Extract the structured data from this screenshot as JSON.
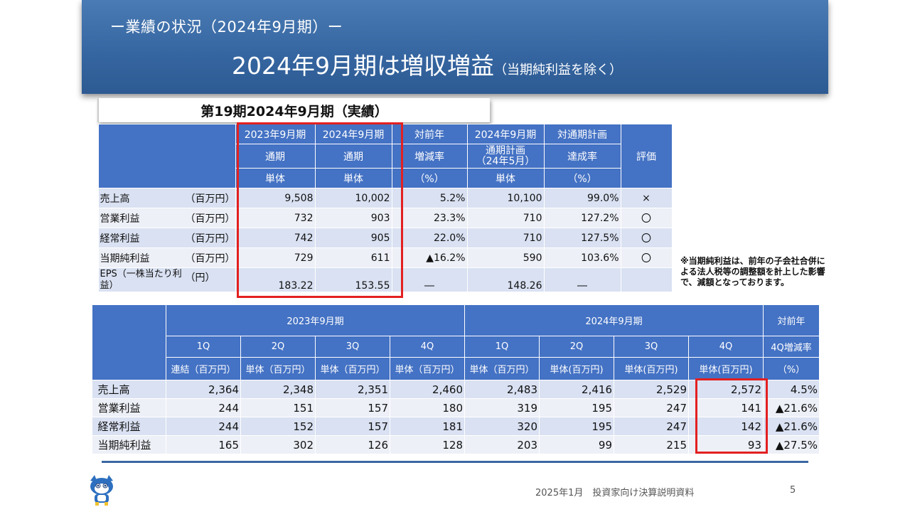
{
  "header": {
    "kicker": "ー業績の状況（2024年9月期）ー",
    "headline": "2024年9月期は増収増益",
    "headline_note": "（当期純利益を除く）"
  },
  "section_label": "第19期2024年9月期（実績）",
  "annual_table": {
    "header_row1": [
      "2023年9月期",
      "2024年9月期",
      "対前年",
      "2024年9月期",
      "対通期計画",
      "評価"
    ],
    "header_row2": [
      "通期",
      "通期",
      "増減率",
      "通期計画\n（24年5月）",
      "達成率"
    ],
    "header_row3": [
      "単体",
      "単体",
      "（%）",
      "単体",
      "（%）"
    ],
    "rows": [
      {
        "label": "売上高",
        "unit": "（百万円）",
        "values": [
          "9,508",
          "10,002",
          "5.2%",
          "10,100",
          "99.0%",
          "×"
        ]
      },
      {
        "label": "営業利益",
        "unit": "（百万円）",
        "values": [
          "732",
          "903",
          "23.3%",
          "710",
          "127.2%",
          "〇"
        ]
      },
      {
        "label": "経常利益",
        "unit": "（百万円）",
        "values": [
          "742",
          "905",
          "22.0%",
          "710",
          "127.5%",
          "〇"
        ]
      },
      {
        "label": "当期純利益",
        "unit": "（百万円）",
        "values": [
          "729",
          "611",
          "▲16.2%",
          "590",
          "103.6%",
          "〇"
        ]
      },
      {
        "label": "EPS（一株当たり利益）",
        "unit": "（円）",
        "values": [
          "183.22",
          "153.55",
          "―",
          "148.26",
          "―",
          ""
        ]
      }
    ]
  },
  "note": "※当期純利益は、前年の子会社合併による法人税等の調整額を計上した影響で、減額となっております。",
  "quarterly_table": {
    "period_2023": "2023年9月期",
    "period_2024": "2024年9月期",
    "yoy": "対前年",
    "quarters": [
      "1Q",
      "2Q",
      "3Q",
      "4Q",
      "1Q",
      "2Q",
      "3Q",
      "4Q"
    ],
    "yoy_sub": "4Q増減率",
    "units": [
      "連結（百万円）",
      "単体（百万円）",
      "単体（百万円）",
      "単体（百万円）",
      "単体（百万円）",
      "単体(百万円)",
      "単体(百万円)",
      "単体(百万円)"
    ],
    "yoy_unit": "（%）",
    "rows": [
      {
        "label": "売上高",
        "values": [
          "2,364",
          "2,348",
          "2,351",
          "2,460",
          "2,483",
          "2,416",
          "2,529",
          "2,572",
          "4.5%"
        ]
      },
      {
        "label": "営業利益",
        "values": [
          "244",
          "151",
          "157",
          "180",
          "319",
          "195",
          "247",
          "141",
          "▲21.6%"
        ]
      },
      {
        "label": "経常利益",
        "values": [
          "244",
          "152",
          "157",
          "181",
          "320",
          "195",
          "247",
          "142",
          "▲21.6%"
        ]
      },
      {
        "label": "当期純利益",
        "values": [
          "165",
          "302",
          "126",
          "128",
          "203",
          "99",
          "215",
          "93",
          "▲27.5%"
        ]
      }
    ]
  },
  "footer": "2025年1月　投資家向け決算説明資料",
  "page_number": "5",
  "colors": {
    "header_blue": "#4472c4",
    "banner_blue": "#3565a0",
    "highlight_red": "#e32020"
  }
}
